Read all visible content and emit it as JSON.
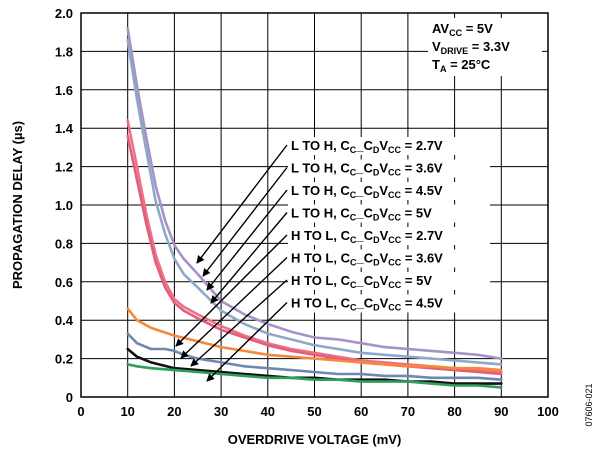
{
  "chart_data": {
    "type": "line",
    "xlabel": "OVERDRIVE VOLTAGE (mV)",
    "ylabel": "PROPAGATION DELAY (µs)",
    "xlim": [
      0,
      100
    ],
    "ylim": [
      0,
      2.0
    ],
    "xticks": [
      0,
      10,
      20,
      30,
      40,
      50,
      60,
      70,
      80,
      90,
      100
    ],
    "yticks": [
      0,
      0.2,
      0.4,
      0.6,
      0.8,
      1.0,
      1.2,
      1.4,
      1.6,
      1.8,
      2.0
    ],
    "ytick_labels": [
      "0",
      "0.2",
      "0.4",
      "0.6",
      "0.8",
      "1.0",
      "1.2",
      "1.4",
      "1.6",
      "1.8",
      "2.0"
    ],
    "grid": true,
    "conditions": [
      {
        "pre": "AV",
        "sub": "CC",
        "post": " = 5V"
      },
      {
        "pre": "V",
        "sub": "DRIVE",
        "post": " = 3.3V"
      },
      {
        "pre": "T",
        "sub": "A",
        "post": " = 25°C"
      }
    ],
    "series": [
      {
        "label": {
          "pre": "L TO H, C",
          "sub1": "C",
          "mid": "_C",
          "sub2": "D",
          "mid2": "V",
          "sub3": "CC",
          "post": " = 2.7V"
        },
        "color": "#a593c8",
        "x": [
          10,
          12,
          14,
          16,
          18,
          20,
          22,
          25,
          30,
          35,
          40,
          45,
          50,
          55,
          60,
          65,
          70,
          75,
          80,
          85,
          90
        ],
        "y": [
          1.92,
          1.62,
          1.35,
          1.1,
          0.92,
          0.79,
          0.72,
          0.64,
          0.5,
          0.43,
          0.38,
          0.34,
          0.31,
          0.3,
          0.28,
          0.26,
          0.25,
          0.24,
          0.23,
          0.22,
          0.2
        ]
      },
      {
        "label": {
          "pre": "L TO H, C",
          "sub1": "C",
          "mid": "_C",
          "sub2": "D",
          "mid2": "V",
          "sub3": "CC",
          "post": " = 3.6V"
        },
        "color": "#8fa8c8",
        "x": [
          10,
          12,
          14,
          16,
          18,
          20,
          22,
          25,
          30,
          35,
          40,
          45,
          50,
          55,
          60,
          65,
          70,
          75,
          80,
          85,
          90
        ],
        "y": [
          1.86,
          1.55,
          1.28,
          1.02,
          0.85,
          0.72,
          0.64,
          0.57,
          0.45,
          0.38,
          0.33,
          0.3,
          0.27,
          0.25,
          0.23,
          0.22,
          0.21,
          0.2,
          0.19,
          0.18,
          0.17
        ]
      },
      {
        "label": {
          "pre": "L TO H, C",
          "sub1": "C",
          "mid": "_C",
          "sub2": "D",
          "mid2": "V",
          "sub3": "CC",
          "post": " = 4.5V"
        },
        "color": "#f07088",
        "x": [
          10,
          12,
          14,
          16,
          18,
          20,
          22,
          25,
          30,
          35,
          40,
          45,
          50,
          55,
          60,
          65,
          70,
          75,
          80,
          85,
          90
        ],
        "y": [
          1.44,
          1.2,
          0.95,
          0.74,
          0.6,
          0.51,
          0.47,
          0.43,
          0.37,
          0.32,
          0.28,
          0.25,
          0.23,
          0.21,
          0.19,
          0.18,
          0.17,
          0.16,
          0.15,
          0.14,
          0.13
        ]
      },
      {
        "label": {
          "pre": "L TO H, C",
          "sub1": "C",
          "mid": "_C",
          "sub2": "D",
          "mid2": "V",
          "sub3": "CC",
          "post": " = 5V"
        },
        "color": "#e0607a",
        "x": [
          10,
          12,
          14,
          16,
          18,
          20,
          22,
          25,
          30,
          35,
          40,
          45,
          50,
          55,
          60,
          65,
          70,
          75,
          80,
          85,
          90
        ],
        "y": [
          1.36,
          1.13,
          0.9,
          0.7,
          0.57,
          0.49,
          0.45,
          0.41,
          0.35,
          0.31,
          0.27,
          0.24,
          0.22,
          0.2,
          0.18,
          0.17,
          0.16,
          0.15,
          0.14,
          0.13,
          0.12
        ]
      },
      {
        "label": {
          "pre": "H TO L, C",
          "sub1": "C",
          "mid": "_C",
          "sub2": "D",
          "mid2": "V",
          "sub3": "CC",
          "post": " = 2.7V"
        },
        "color": "#f7883a",
        "x": [
          10,
          12,
          15,
          20,
          25,
          30,
          35,
          40,
          45,
          50,
          55,
          60,
          65,
          70,
          75,
          80,
          85,
          90
        ],
        "y": [
          0.46,
          0.4,
          0.36,
          0.32,
          0.29,
          0.26,
          0.24,
          0.22,
          0.21,
          0.2,
          0.19,
          0.18,
          0.17,
          0.16,
          0.16,
          0.15,
          0.15,
          0.14
        ]
      },
      {
        "label": {
          "pre": "H TO L, C",
          "sub1": "C",
          "mid": "_C",
          "sub2": "D",
          "mid2": "V",
          "sub3": "CC",
          "post": " = 3.6V"
        },
        "color": "#6f88b0",
        "x": [
          10,
          12,
          15,
          18,
          20,
          22,
          25,
          30,
          35,
          40,
          45,
          50,
          55,
          60,
          65,
          70,
          75,
          80,
          85,
          90
        ],
        "y": [
          0.33,
          0.28,
          0.25,
          0.25,
          0.24,
          0.22,
          0.2,
          0.18,
          0.16,
          0.15,
          0.14,
          0.13,
          0.12,
          0.12,
          0.11,
          0.11,
          0.1,
          0.1,
          0.1,
          0.09
        ]
      },
      {
        "label": {
          "pre": "H TO L, C",
          "sub1": "C",
          "mid": "_C",
          "sub2": "D",
          "mid2": "V",
          "sub3": "CC",
          "post": " = 5V"
        },
        "color": "#111111",
        "x": [
          10,
          12,
          15,
          20,
          25,
          30,
          35,
          40,
          45,
          50,
          55,
          60,
          65,
          70,
          75,
          80,
          85,
          90
        ],
        "y": [
          0.25,
          0.21,
          0.18,
          0.15,
          0.14,
          0.13,
          0.12,
          0.11,
          0.1,
          0.1,
          0.09,
          0.09,
          0.09,
          0.08,
          0.08,
          0.07,
          0.07,
          0.07
        ]
      },
      {
        "label": {
          "pre": "H TO L, C",
          "sub1": "C",
          "mid": "_C",
          "sub2": "D",
          "mid2": "V",
          "sub3": "CC",
          "post": " = 4.5V"
        },
        "color": "#2e9e5a",
        "x": [
          10,
          12,
          15,
          20,
          25,
          30,
          35,
          40,
          45,
          50,
          55,
          60,
          65,
          70,
          75,
          80,
          85,
          90
        ],
        "y": [
          0.17,
          0.16,
          0.15,
          0.14,
          0.13,
          0.12,
          0.11,
          0.1,
          0.1,
          0.09,
          0.09,
          0.08,
          0.08,
          0.08,
          0.07,
          0.06,
          0.06,
          0.05
        ]
      }
    ],
    "figure_code": "07606-021"
  }
}
